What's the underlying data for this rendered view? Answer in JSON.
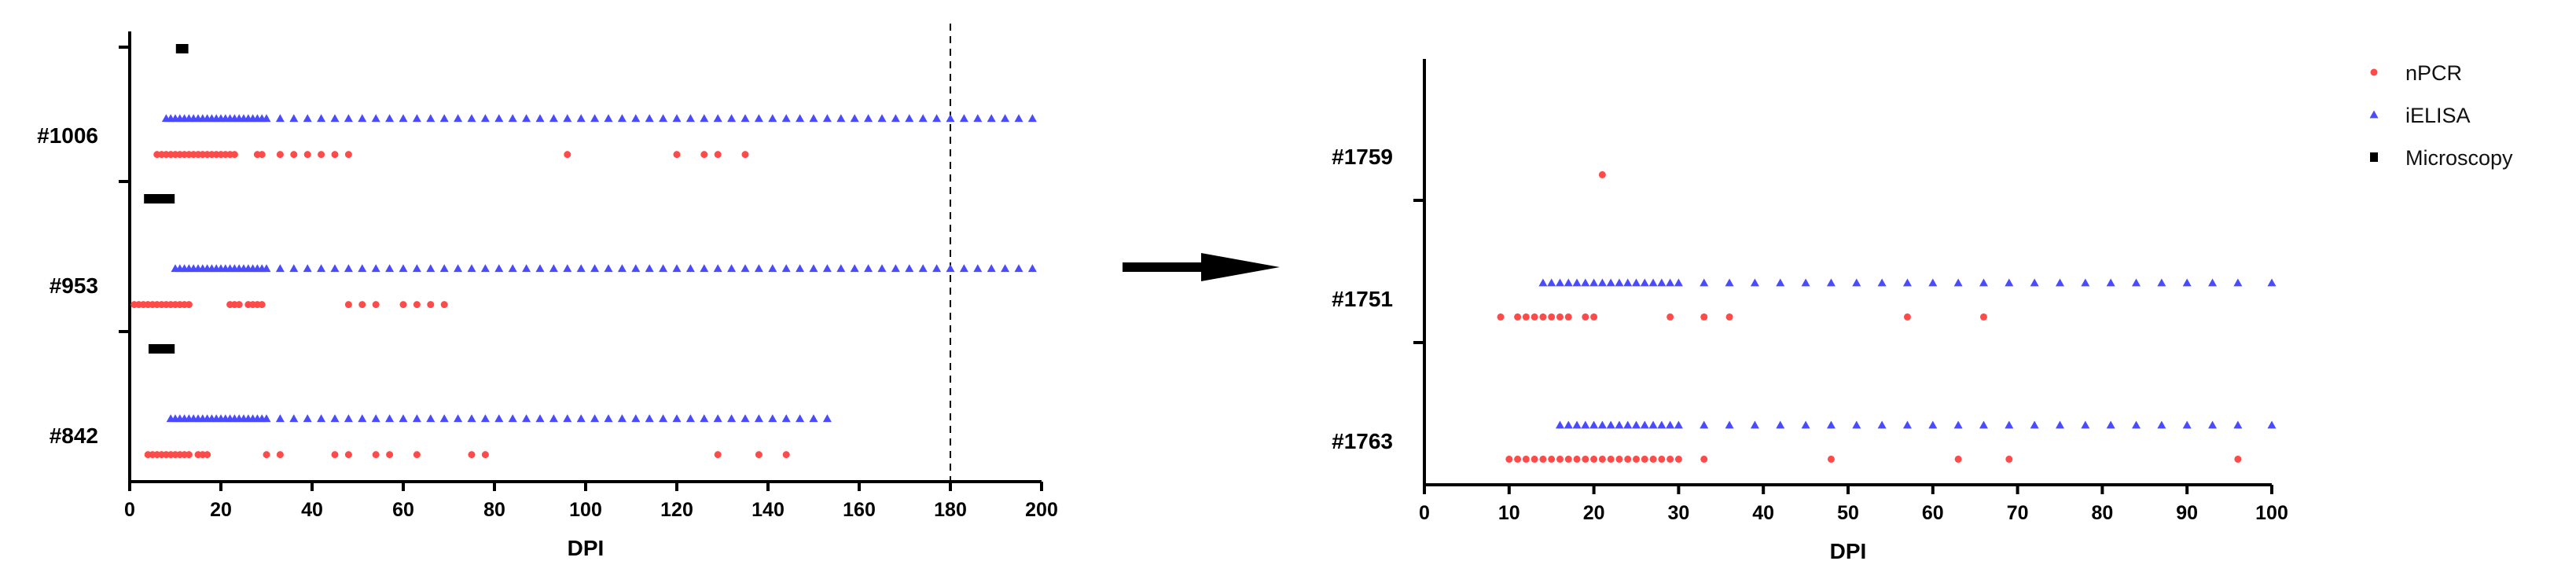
{
  "colors": {
    "nPCR": "#ff4a4a",
    "iELISA": "#4a4aff",
    "Microscopy": "#000000",
    "arrow": "#000000"
  },
  "legend": {
    "position": "top-right",
    "items": [
      {
        "label": "nPCR",
        "marker": "circle",
        "color": "#ff4a4a"
      },
      {
        "label": "iELISA",
        "marker": "triangle",
        "color": "#4a4aff"
      },
      {
        "label": "Microscopy",
        "marker": "square",
        "color": "#000000"
      }
    ]
  },
  "chart_data": [
    {
      "type": "scatter",
      "xlabel": "DPI",
      "xlim": [
        0,
        200
      ],
      "xticks": [
        0,
        20,
        40,
        60,
        80,
        100,
        120,
        140,
        160,
        180,
        200
      ],
      "reference_line_x": 180,
      "categories": [
        {
          "name": "#1006",
          "Microscopy": [
            11,
            12
          ],
          "iELISA": [
            8,
            9,
            10,
            11,
            12,
            13,
            14,
            15,
            16,
            17,
            18,
            19,
            20,
            21,
            22,
            23,
            24,
            25,
            26,
            27,
            28,
            29,
            30,
            33,
            36,
            39,
            42,
            45,
            48,
            51,
            54,
            57,
            60,
            63,
            66,
            69,
            72,
            75,
            78,
            81,
            84,
            87,
            90,
            93,
            96,
            99,
            102,
            105,
            108,
            111,
            114,
            117,
            120,
            123,
            126,
            129,
            132,
            135,
            138,
            141,
            144,
            147,
            150,
            153,
            156,
            159,
            162,
            165,
            168,
            171,
            174,
            177,
            180,
            183,
            186,
            189,
            192,
            195,
            198
          ],
          "nPCR": [
            6,
            7,
            8,
            9,
            10,
            11,
            12,
            13,
            14,
            15,
            16,
            17,
            18,
            19,
            20,
            21,
            22,
            23,
            28,
            29,
            33,
            36,
            39,
            42,
            45,
            48,
            96,
            120,
            126,
            129,
            135
          ]
        },
        {
          "name": "#953",
          "Microscopy": [
            4,
            5,
            6,
            7,
            8,
            9
          ],
          "iELISA": [
            10,
            11,
            12,
            13,
            14,
            15,
            16,
            17,
            18,
            19,
            20,
            21,
            22,
            23,
            24,
            25,
            26,
            27,
            28,
            29,
            30,
            33,
            36,
            39,
            42,
            45,
            48,
            51,
            54,
            57,
            60,
            63,
            66,
            69,
            72,
            75,
            78,
            81,
            84,
            87,
            90,
            93,
            96,
            99,
            102,
            105,
            108,
            111,
            114,
            117,
            120,
            123,
            126,
            129,
            132,
            135,
            138,
            141,
            144,
            147,
            150,
            153,
            156,
            159,
            162,
            165,
            168,
            171,
            174,
            177,
            180,
            183,
            186,
            189,
            192,
            195,
            198
          ],
          "nPCR": [
            1,
            2,
            3,
            4,
            5,
            6,
            7,
            8,
            9,
            10,
            11,
            12,
            13,
            22,
            23,
            24,
            26,
            27,
            28,
            29,
            48,
            51,
            54,
            60,
            63,
            66,
            69
          ]
        },
        {
          "name": "#842",
          "Microscopy": [
            5,
            6,
            7,
            8,
            9
          ],
          "iELISA": [
            9,
            10,
            11,
            12,
            13,
            14,
            15,
            16,
            17,
            18,
            19,
            20,
            21,
            22,
            23,
            24,
            25,
            26,
            27,
            28,
            29,
            30,
            33,
            36,
            39,
            42,
            45,
            48,
            51,
            54,
            57,
            60,
            63,
            66,
            69,
            72,
            75,
            78,
            81,
            84,
            87,
            90,
            93,
            96,
            99,
            102,
            105,
            108,
            111,
            114,
            117,
            120,
            123,
            126,
            129,
            132,
            135,
            138,
            141,
            144,
            147,
            150,
            153
          ],
          "nPCR": [
            4,
            5,
            6,
            7,
            8,
            9,
            10,
            11,
            12,
            13,
            15,
            16,
            17,
            30,
            33,
            45,
            48,
            54,
            57,
            63,
            75,
            78,
            129,
            138,
            144
          ]
        }
      ]
    },
    {
      "type": "scatter",
      "xlabel": "DPI",
      "xlim": [
        0,
        100
      ],
      "xticks": [
        0,
        10,
        20,
        30,
        40,
        50,
        60,
        70,
        80,
        90,
        100
      ],
      "categories": [
        {
          "name": "#1759",
          "Microscopy": [],
          "iELISA": [],
          "nPCR": [
            21
          ]
        },
        {
          "name": "#1751",
          "Microscopy": [],
          "iELISA": [
            14,
            15,
            16,
            17,
            18,
            19,
            20,
            21,
            22,
            23,
            24,
            25,
            26,
            27,
            28,
            29,
            30,
            33,
            36,
            39,
            42,
            45,
            48,
            51,
            54,
            57,
            60,
            63,
            66,
            69,
            72,
            75,
            78,
            81,
            84,
            87,
            90,
            93,
            96,
            100
          ],
          "nPCR": [
            9,
            11,
            12,
            13,
            14,
            15,
            16,
            17,
            19,
            20,
            29,
            33,
            36,
            57,
            66
          ]
        },
        {
          "name": "#1763",
          "Microscopy": [],
          "iELISA": [
            16,
            17,
            18,
            19,
            20,
            21,
            22,
            23,
            24,
            25,
            26,
            27,
            28,
            29,
            30,
            33,
            36,
            39,
            42,
            45,
            48,
            51,
            54,
            57,
            60,
            63,
            66,
            69,
            72,
            75,
            78,
            81,
            84,
            87,
            90,
            93,
            96,
            100
          ],
          "nPCR": [
            10,
            11,
            12,
            13,
            14,
            15,
            16,
            17,
            18,
            19,
            20,
            21,
            22,
            23,
            24,
            25,
            26,
            27,
            28,
            29,
            30,
            33,
            48,
            63,
            69,
            96
          ]
        }
      ]
    }
  ]
}
